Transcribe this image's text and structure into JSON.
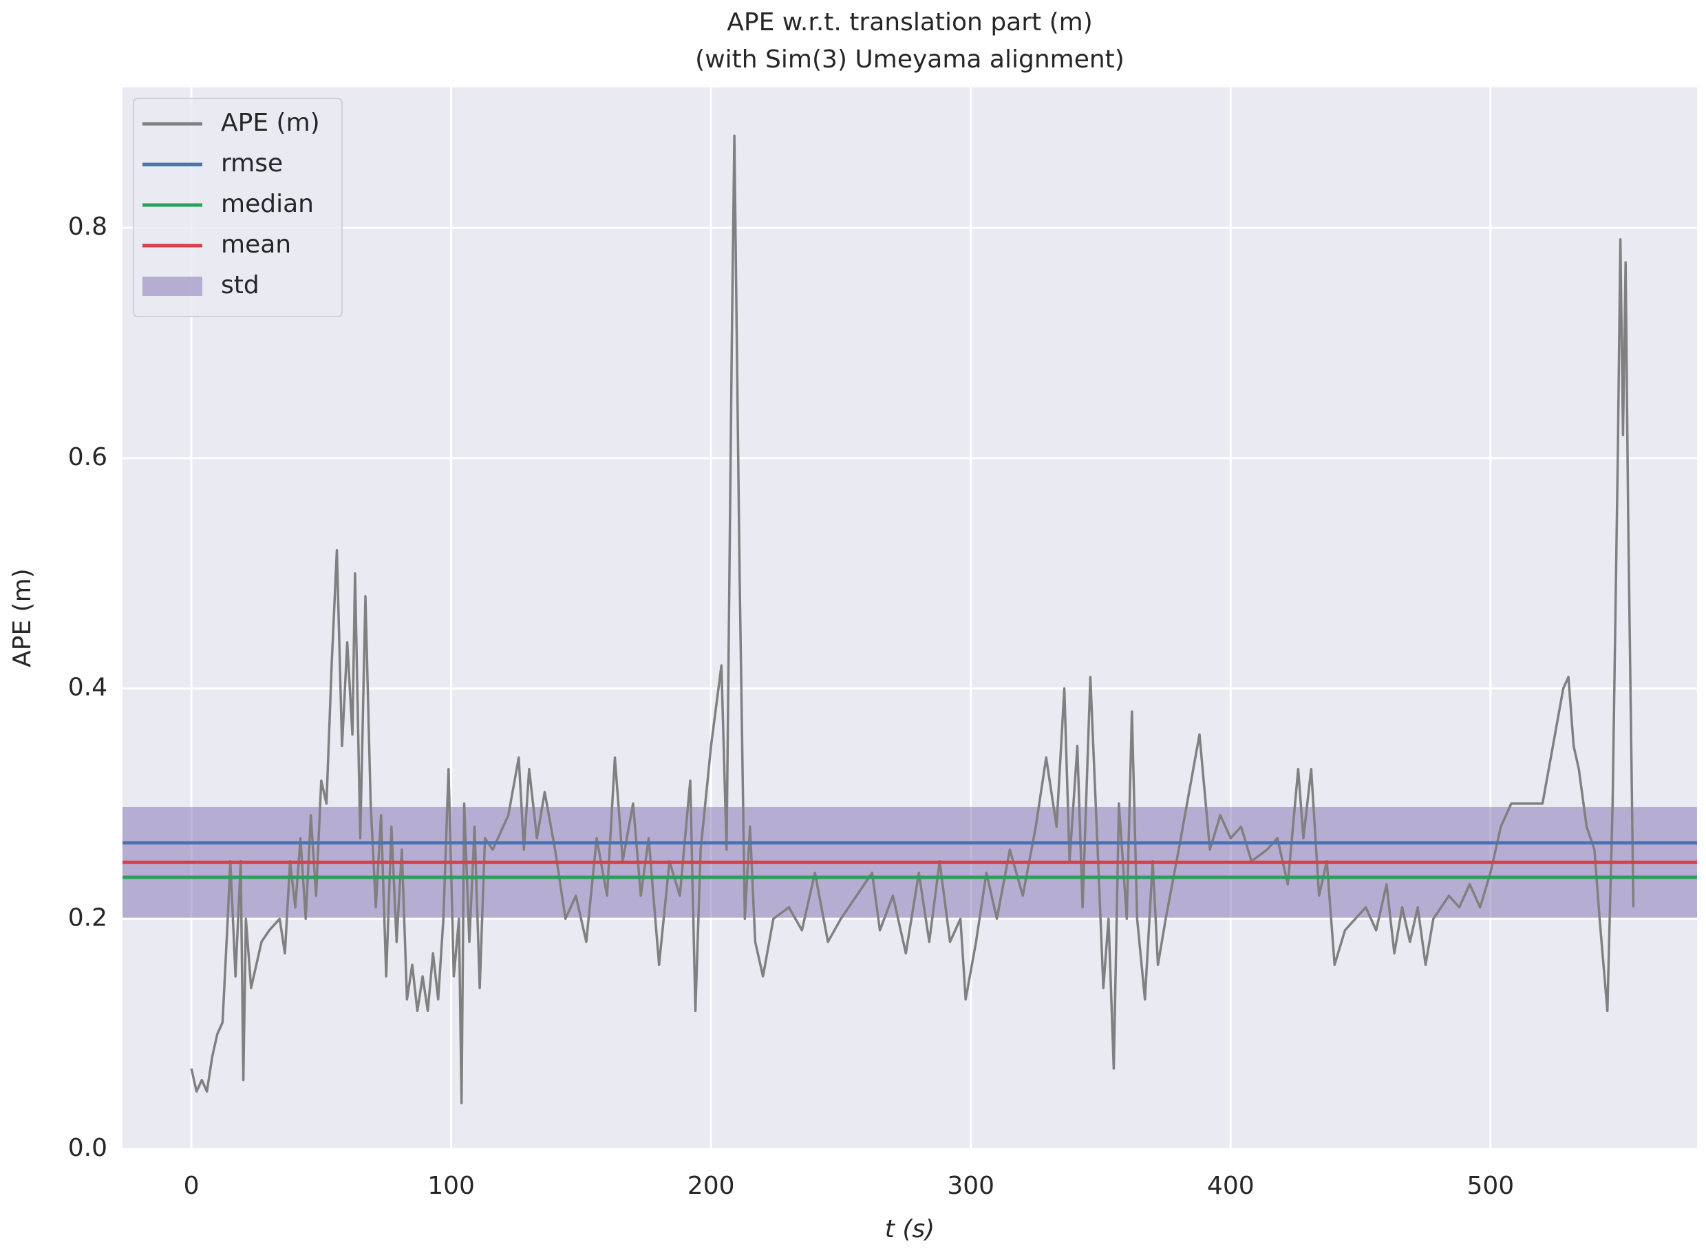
{
  "chart_data": {
    "type": "line",
    "title": "APE w.r.t. translation part (m)",
    "subtitle": "(with Sim(3) Umeyama alignment)",
    "xlabel": "t (s)",
    "ylabel": "APE (m)",
    "xlim": [
      -26.5,
      579.5
    ],
    "ylim": [
      0,
      0.922
    ],
    "xticks": [
      0,
      100,
      200,
      300,
      400,
      500
    ],
    "yticks": [
      {
        "value": 0,
        "label": "0.0"
      },
      0.2,
      0.4,
      0.6,
      0.8
    ],
    "grid": true,
    "legend": "upper left",
    "x": [
      0,
      2,
      4,
      6,
      8,
      10,
      12,
      14,
      15,
      17,
      19,
      20,
      21,
      23,
      27,
      30,
      34,
      36,
      38,
      40,
      42,
      44,
      46,
      48,
      50,
      52,
      54,
      56,
      58,
      60,
      62,
      63,
      65,
      67,
      69,
      71,
      73,
      75,
      77,
      79,
      81,
      83,
      85,
      87,
      89,
      91,
      93,
      95,
      97,
      99,
      101,
      103,
      104,
      105,
      107,
      109,
      111,
      113,
      116,
      122,
      126,
      128,
      130,
      133,
      136,
      140,
      144,
      148,
      152,
      156,
      160,
      163,
      166,
      170,
      173,
      176,
      180,
      184,
      188,
      192,
      194,
      196,
      200,
      204,
      206,
      208,
      209,
      211,
      213,
      215,
      217,
      220,
      224,
      230,
      235,
      240,
      245,
      250,
      262,
      265,
      270,
      275,
      280,
      284,
      288,
      292,
      296,
      298,
      302,
      306,
      310,
      315,
      320,
      325,
      329,
      333,
      336,
      338,
      341,
      343,
      346,
      349,
      351,
      353,
      355,
      357,
      360,
      362,
      364,
      367,
      370,
      372,
      375,
      380,
      384,
      388,
      392,
      396,
      400,
      404,
      408,
      414,
      418,
      422,
      426,
      428,
      431,
      434,
      437,
      440,
      444,
      452,
      456,
      460,
      463,
      466,
      469,
      472,
      475,
      478,
      484,
      488,
      492,
      496,
      500,
      504,
      508,
      515,
      520,
      524,
      528,
      530,
      532,
      534,
      537,
      540,
      542,
      545,
      547,
      549,
      550,
      551,
      552,
      553,
      555
    ],
    "series": [
      {
        "name": "APE (m)",
        "color": "#808080",
        "values": [
          0.07,
          0.05,
          0.06,
          0.05,
          0.08,
          0.1,
          0.11,
          0.2,
          0.25,
          0.15,
          0.25,
          0.06,
          0.2,
          0.14,
          0.18,
          0.19,
          0.2,
          0.17,
          0.25,
          0.21,
          0.27,
          0.2,
          0.29,
          0.22,
          0.32,
          0.3,
          0.42,
          0.52,
          0.35,
          0.44,
          0.36,
          0.5,
          0.27,
          0.48,
          0.3,
          0.21,
          0.29,
          0.15,
          0.28,
          0.18,
          0.26,
          0.13,
          0.16,
          0.12,
          0.15,
          0.12,
          0.17,
          0.13,
          0.2,
          0.33,
          0.15,
          0.2,
          0.04,
          0.3,
          0.18,
          0.28,
          0.14,
          0.27,
          0.26,
          0.29,
          0.34,
          0.26,
          0.33,
          0.27,
          0.31,
          0.26,
          0.2,
          0.22,
          0.18,
          0.27,
          0.22,
          0.34,
          0.25,
          0.3,
          0.22,
          0.27,
          0.16,
          0.25,
          0.22,
          0.32,
          0.12,
          0.26,
          0.35,
          0.42,
          0.26,
          0.7,
          0.88,
          0.5,
          0.2,
          0.28,
          0.18,
          0.15,
          0.2,
          0.21,
          0.19,
          0.24,
          0.18,
          0.2,
          0.24,
          0.19,
          0.22,
          0.17,
          0.24,
          0.18,
          0.25,
          0.18,
          0.2,
          0.13,
          0.18,
          0.24,
          0.2,
          0.26,
          0.22,
          0.28,
          0.34,
          0.28,
          0.4,
          0.25,
          0.35,
          0.21,
          0.41,
          0.25,
          0.14,
          0.2,
          0.07,
          0.3,
          0.2,
          0.38,
          0.2,
          0.13,
          0.25,
          0.16,
          0.2,
          0.26,
          0.31,
          0.36,
          0.26,
          0.29,
          0.27,
          0.28,
          0.25,
          0.26,
          0.27,
          0.23,
          0.33,
          0.27,
          0.33,
          0.22,
          0.25,
          0.16,
          0.19,
          0.21,
          0.19,
          0.23,
          0.17,
          0.21,
          0.18,
          0.21,
          0.16,
          0.2,
          0.22,
          0.21,
          0.23,
          0.21,
          0.24,
          0.28,
          0.3,
          0.3,
          0.3,
          0.35,
          0.4,
          0.41,
          0.35,
          0.33,
          0.28,
          0.26,
          0.2,
          0.12,
          0.3,
          0.6,
          0.79,
          0.62,
          0.77,
          0.55,
          0.21
        ]
      }
    ],
    "hlines": [
      {
        "name": "rmse",
        "color": "#4c72b0",
        "value": 0.266
      },
      {
        "name": "median",
        "color": "#2ca05a",
        "value": 0.236
      },
      {
        "name": "mean",
        "color": "#d6404a",
        "value": 0.249
      }
    ],
    "band": {
      "name": "std",
      "color": "#8172b2",
      "value": 0.048
    }
  }
}
